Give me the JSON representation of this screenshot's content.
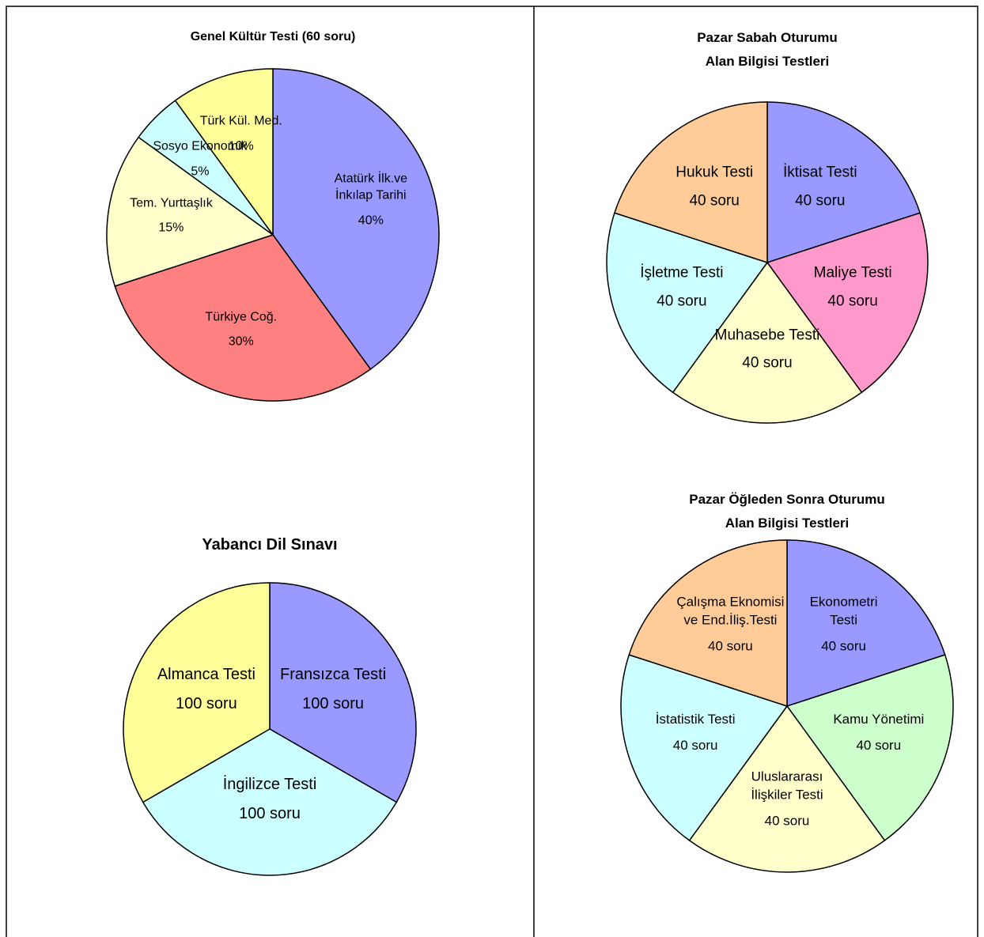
{
  "chart_data": [
    {
      "type": "pie",
      "title": "Genel Kültür Testi (60 soru)",
      "categories": [
        "Atatürk İlk.ve\nİnkılap Tarihi",
        "Türkiye Coğ.",
        "Tem. Yurttaşlık",
        "Sosyo Ekonomik",
        "Türk Kül. Med."
      ],
      "values": [
        40,
        30,
        15,
        5,
        10
      ],
      "value_labels": [
        "40%",
        "30%",
        "15%",
        "5%",
        "10%"
      ],
      "colors": [
        "#9999ff",
        "#ff8080",
        "#ffffcc",
        "#ccffff",
        "#ffff99"
      ]
    },
    {
      "type": "pie",
      "title": "Pazar Sabah  Oturumu\nAlan Bilgisi Testleri",
      "categories": [
        "İktisat Testi",
        "Maliye Testi",
        "Muhasebe Testi",
        "İşletme Testi",
        "Hukuk Testi"
      ],
      "values": [
        40,
        40,
        40,
        40,
        40
      ],
      "value_labels": [
        "40 soru",
        "40 soru",
        "40 soru",
        "40 soru",
        "40 soru"
      ],
      "colors": [
        "#9999ff",
        "#ff99cc",
        "#ffffcc",
        "#ccffff",
        "#ffcc99"
      ]
    },
    {
      "type": "pie",
      "title": "Yabancı Dil Sınavı",
      "categories": [
        "Fransızca Testi",
        "İngilizce Testi",
        "Almanca Testi"
      ],
      "values": [
        100,
        100,
        100
      ],
      "value_labels": [
        "100 soru",
        "100 soru",
        "100 soru"
      ],
      "colors": [
        "#9999ff",
        "#ccffff",
        "#ffff99"
      ]
    },
    {
      "type": "pie",
      "title": "Pazar Öğleden Sonra Oturumu\nAlan Bilgisi Testleri",
      "categories": [
        "Ekonometri\nTesti",
        "Kamu Yönetimi",
        "Uluslararası\nİlişkiler Testi",
        "İstatistik Testi",
        "Çalışma Eknomisi\nve End.İliş.Testi"
      ],
      "values": [
        40,
        40,
        40,
        40,
        40
      ],
      "value_labels": [
        "40 soru",
        "40 soru",
        "40 soru",
        "40 soru",
        "40 soru"
      ],
      "colors": [
        "#9999ff",
        "#ccffcc",
        "#ffffcc",
        "#ccffff",
        "#ffcc99"
      ]
    }
  ]
}
